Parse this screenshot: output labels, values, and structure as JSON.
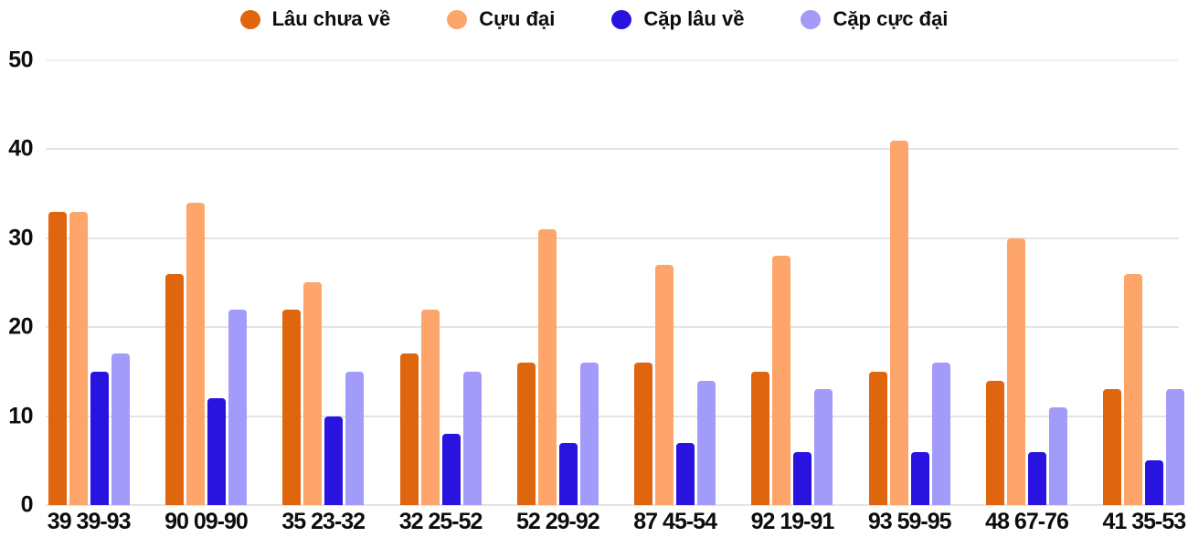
{
  "chart_data": {
    "type": "bar",
    "title": "",
    "categories": [
      "39 39-93",
      "90 09-90",
      "35 23-32",
      "32 25-52",
      "52 29-92",
      "87 45-54",
      "92 19-91",
      "93 59-95",
      "48 67-76",
      "41 35-53"
    ],
    "series": [
      {
        "name": "Lâu chưa về",
        "color": "#E0650F",
        "values": [
          33,
          26,
          22,
          17,
          16,
          16,
          15,
          15,
          14,
          13
        ]
      },
      {
        "name": "Cựu đại",
        "color": "#FDA56A",
        "values": [
          33,
          34,
          25,
          22,
          31,
          27,
          28,
          41,
          30,
          26
        ]
      },
      {
        "name": "Cặp lâu về",
        "color": "#2913DF",
        "values": [
          15,
          12,
          10,
          8,
          7,
          7,
          6,
          6,
          6,
          5
        ]
      },
      {
        "name": "Cặp cực đại",
        "color": "#A39BF9",
        "values": [
          17,
          22,
          15,
          15,
          16,
          14,
          13,
          16,
          11,
          13
        ]
      }
    ],
    "y_axis": {
      "min": 0,
      "max": 50,
      "ticks": [
        0,
        10,
        20,
        30,
        40,
        50
      ]
    },
    "xlabel": "",
    "ylabel": "",
    "legend_position": "top",
    "grid": true
  },
  "colors": {
    "background": "#FFFFFF",
    "grid": "#E4E4E4",
    "axis_text": "#0D0D0D"
  }
}
